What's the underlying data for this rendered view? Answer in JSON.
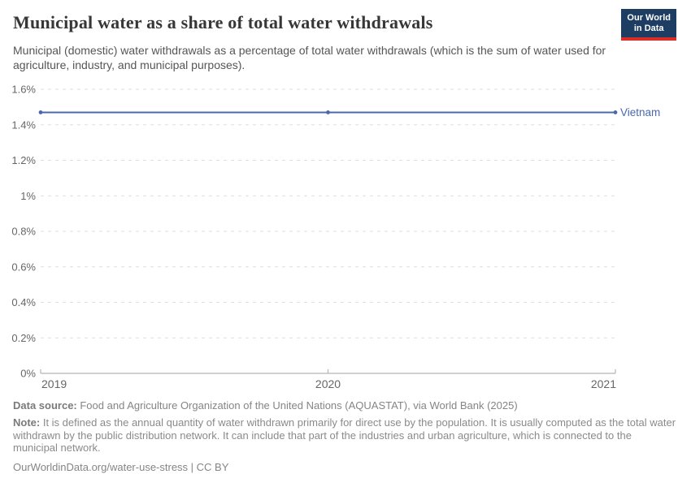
{
  "header": {
    "title": "Municipal water as a share of total water withdrawals",
    "subtitle": "Municipal (domestic) water withdrawals as a percentage of total water withdrawals (which is the sum of water used for agriculture, industry, and municipal purposes).",
    "logo": {
      "line1": "Our World",
      "line2": "in Data",
      "bg_color": "#1d3d63",
      "accent_color": "#dc2e27"
    }
  },
  "chart_data": {
    "type": "line",
    "title": "Municipal water as a share of total water withdrawals",
    "x": [
      2019,
      2020,
      2021
    ],
    "xtick_labels": [
      "2019",
      "2020",
      "2021"
    ],
    "series": [
      {
        "name": "Vietnam",
        "values": [
          1.47,
          1.47,
          1.47
        ],
        "color": "#4a68ab"
      }
    ],
    "xlabel": "",
    "ylabel": "",
    "ylim": [
      0,
      1.6
    ],
    "yticks": [
      0,
      0.2,
      0.4,
      0.6,
      0.8,
      1.0,
      1.2,
      1.4,
      1.6
    ],
    "ytick_labels": [
      "0%",
      "0.2%",
      "0.4%",
      "0.6%",
      "0.8%",
      "1%",
      "1.2%",
      "1.4%",
      "1.6%"
    ],
    "grid": "horizontal-dashed",
    "legend": "entity-label-right-of-line",
    "axis_color": "#b5b5b5",
    "grid_color": "#dedede",
    "tick_label_color": "#666666"
  },
  "footer": {
    "data_source_label": "Data source:",
    "data_source_text": " Food and Agriculture Organization of the United Nations (AQUASTAT), via World Bank (2025)",
    "note_label": "Note:",
    "note_text": " It is defined as the annual quantity of water withdrawn primarily for direct use by the population. It is usually computed as the total water withdrawn by the public distribution network. It can include that part of the industries and urban agriculture, which is connected to the municipal network.",
    "citation": "OurWorldinData.org/water-use-stress | CC BY"
  }
}
